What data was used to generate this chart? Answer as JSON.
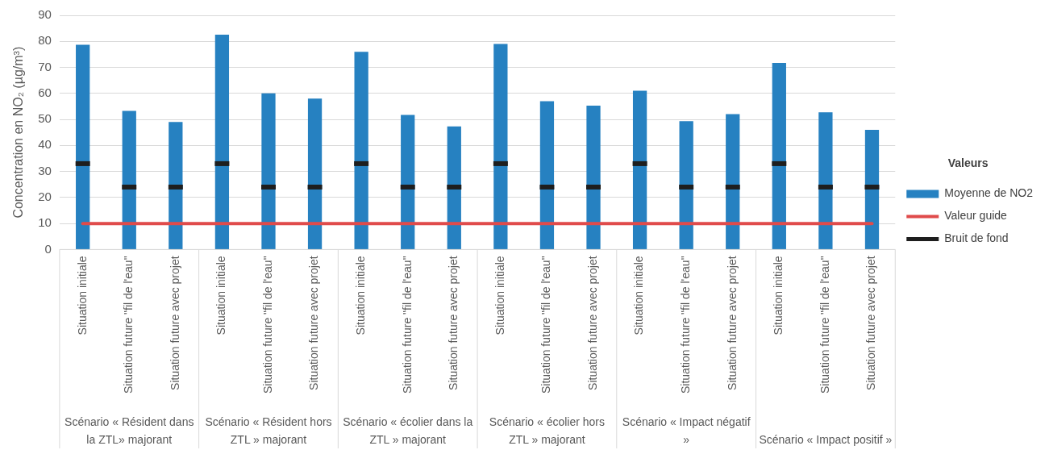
{
  "chart_data": {
    "type": "bar",
    "ylabel": "Concentration en NO₂ (µg/m³)",
    "legend_title": "Valeurs",
    "legend": "right",
    "grid": "y",
    "categories": [
      "Situation initiale",
      "Situation future \"fil de l'eau\"",
      "Situation future avec projet",
      "Situation initiale",
      "Situation future \"fil de l'eau\"",
      "Situation future avec projet",
      "Situation initiale",
      "Situation future \"fil de l'eau\"",
      "Situation future avec projet",
      "Situation initiale",
      "Situation future \"fil de l'eau\"",
      "Situation future avec projet",
      "Situation initiale",
      "Situation future \"fil de l'eau\"",
      "Situation future avec projet",
      "Situation initiale",
      "Situation future \"fil de l'eau\"",
      "Situation future avec projet"
    ],
    "ylim": [
      0,
      90
    ],
    "yticks": [
      0,
      10,
      20,
      30,
      40,
      50,
      60,
      70,
      80,
      90
    ],
    "series": [
      {
        "name": "Moyenne de NO2",
        "type": "bar",
        "color": "#2681c1",
        "values": [
          78.7,
          53.3,
          49,
          82.6,
          60,
          58,
          76,
          51.7,
          47.3,
          79,
          57,
          55.3,
          61,
          49.3,
          52,
          71.7,
          52.7,
          46
        ]
      },
      {
        "name": "Valeur guide",
        "type": "line",
        "color": "#e04b4b",
        "values": [
          10,
          10,
          10,
          10,
          10,
          10,
          10,
          10,
          10,
          10,
          10,
          10,
          10,
          10,
          10,
          10,
          10,
          10
        ]
      },
      {
        "name": "Bruit de fond",
        "type": "scatter",
        "color": "#1e1e1e",
        "values": [
          33,
          24,
          24,
          33,
          24,
          24,
          33,
          24,
          24,
          33,
          24,
          24,
          33,
          24,
          24,
          33,
          24,
          24
        ]
      }
    ],
    "annotations": [
      "Scénario « Résident dans la ZTL» majorant",
      "Scénario « Résident hors ZTL » majorant",
      "Scénario « écolier dans la ZTL » majorant",
      "Scénario « écolier hors ZTL » majorant",
      "Scénario « Impact négatif »",
      "Scénario « Impact positif »"
    ]
  }
}
